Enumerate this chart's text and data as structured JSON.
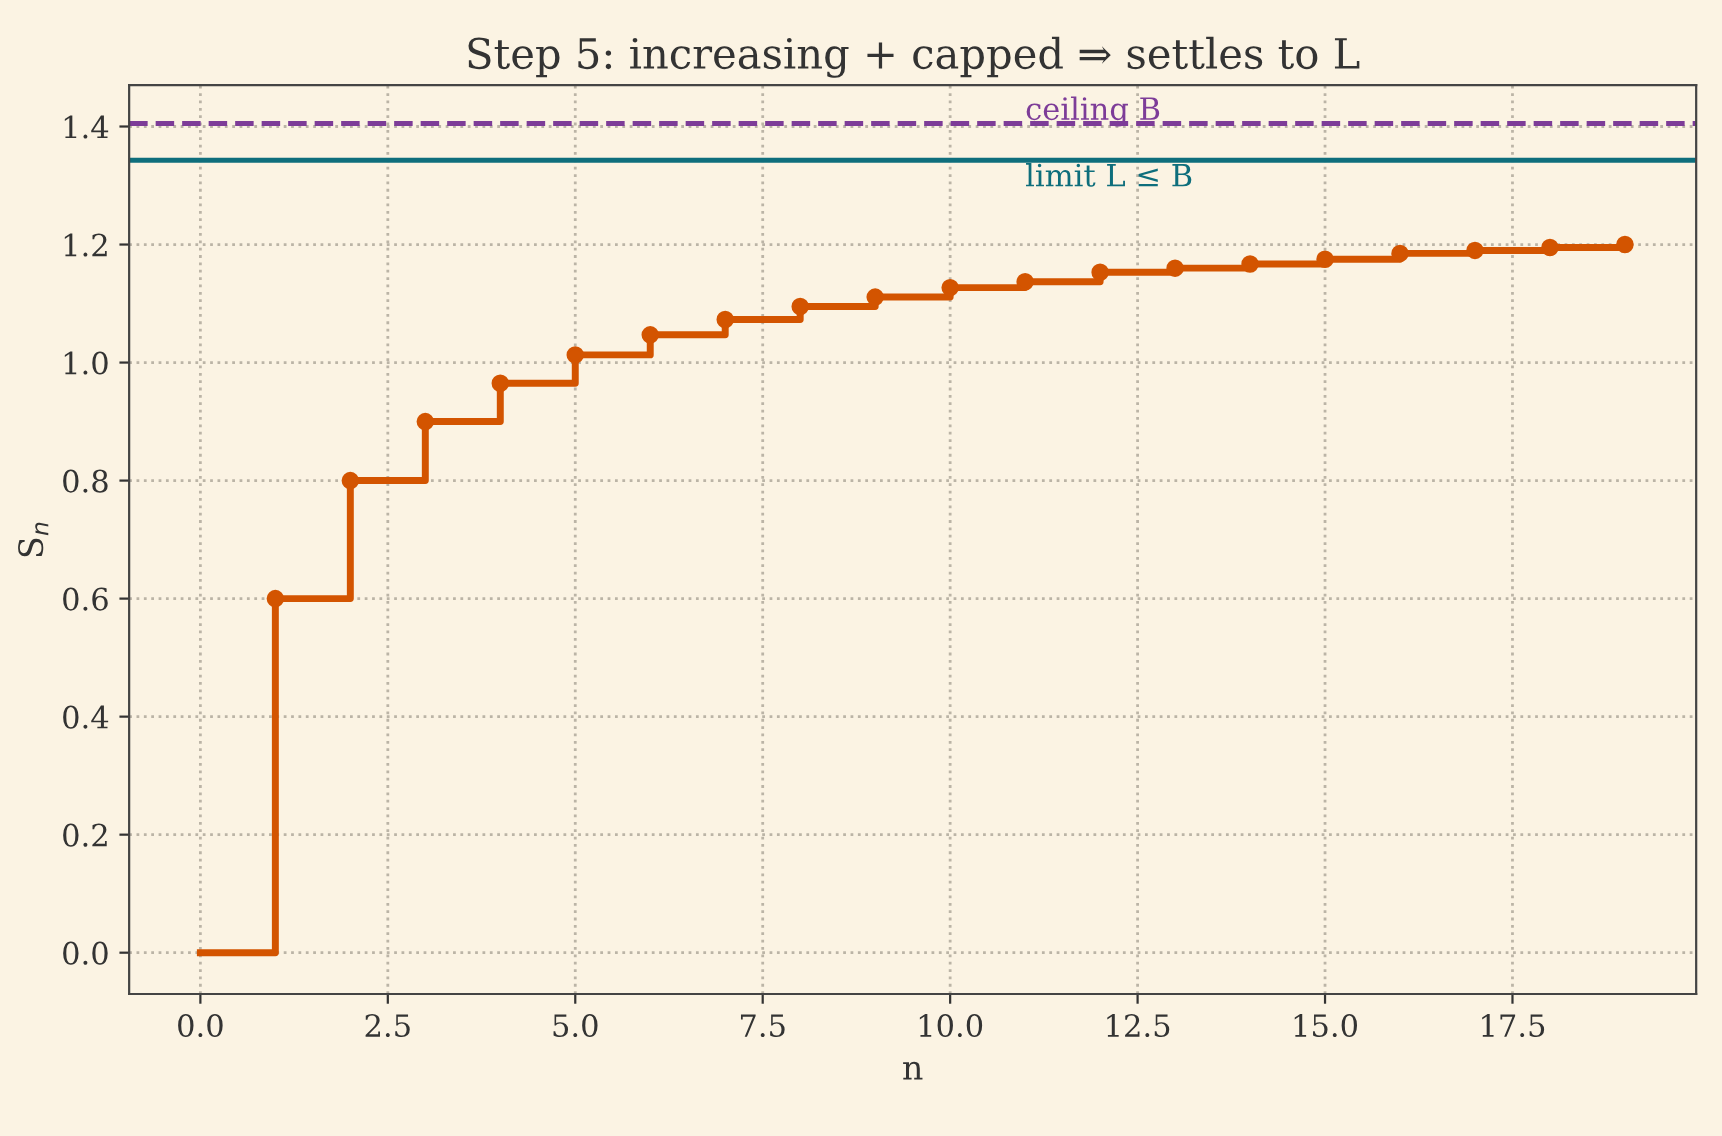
{
  "chart_data": {
    "type": "step",
    "title": "Step 5: increasing + capped ⇒ settles to L",
    "xlabel": "n",
    "ylabel": "S$_{n}$",
    "series": [
      {
        "color": "#d35400",
        "x": [
          0,
          1,
          2,
          3,
          4,
          5,
          6,
          7,
          8,
          9,
          10,
          11,
          12,
          13,
          14,
          15,
          16,
          17,
          18,
          19
        ],
        "values": [
          0,
          0.6,
          0.8,
          0.9,
          0.965,
          1.013,
          1.047,
          1.073,
          1.095,
          1.111,
          1.127,
          1.137,
          1.153,
          1.16,
          1.167,
          1.175,
          1.185,
          1.19,
          1.195,
          1.2
        ]
      },
      {
        "type": "scatter",
        "color": "#d35400",
        "x": [
          1,
          2,
          3,
          4,
          5,
          6,
          7,
          8,
          9,
          10,
          11,
          12,
          13,
          14,
          15,
          16,
          17,
          18,
          19
        ],
        "values": [
          0.6,
          0.8,
          0.9,
          0.965,
          1.013,
          1.047,
          1.073,
          1.095,
          1.111,
          1.127,
          1.137,
          1.153,
          1.16,
          1.167,
          1.175,
          1.185,
          1.19,
          1.195,
          1.2
        ]
      }
    ],
    "ref_lines": [
      {
        "axis": "y",
        "value": 1.405,
        "label": "ceiling B",
        "color": "#7d3c98",
        "line_style": "dashed"
      },
      {
        "axis": "y",
        "value": 1.343,
        "label": "limit L ≤ B",
        "color": "#0e6e7c",
        "line_style": "solid"
      }
    ],
    "xlim": [
      -0.95,
      19.95
    ],
    "ylim": [
      -0.07,
      1.47
    ],
    "xticks": [
      {
        "value": 0,
        "label": "0.0"
      },
      2.5,
      {
        "value": 5,
        "label": "5.0"
      },
      7.5,
      {
        "value": 10,
        "label": "10.0"
      },
      12.5,
      {
        "value": 15,
        "label": "15.0"
      },
      17.5
    ],
    "yticks": [
      {
        "value": 0,
        "label": "0.0"
      },
      0.2,
      0.4,
      0.6,
      0.8,
      {
        "value": 1,
        "label": "1.0"
      },
      1.2,
      1.4
    ],
    "grid": true
  }
}
